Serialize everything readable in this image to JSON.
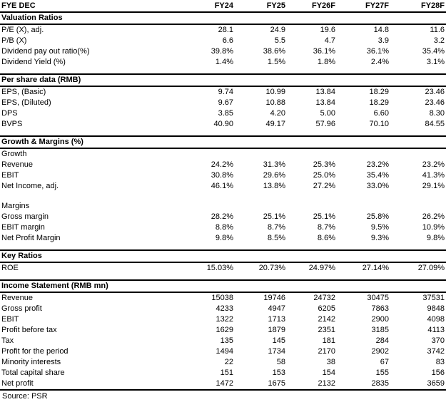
{
  "table": {
    "header": {
      "label": "FYE DEC",
      "columns": [
        "FY24",
        "FY25",
        "FY26F",
        "FY27F",
        "FY28F"
      ]
    },
    "sections": [
      {
        "title": "Valuation Ratios",
        "rows": [
          {
            "label": "P/E (X), adj.",
            "values": [
              "28.1",
              "24.9",
              "19.6",
              "14.8",
              "11.6"
            ]
          },
          {
            "label": "P/B (X)",
            "values": [
              "6.6",
              "5.5",
              "4.7",
              "3.9",
              "3.2"
            ]
          },
          {
            "label": "Dividend pay out ratio(%)",
            "values": [
              "39.8%",
              "38.6%",
              "36.1%",
              "36.1%",
              "35.4%"
            ]
          },
          {
            "label": "Dividend Yield (%)",
            "values": [
              "1.4%",
              "1.5%",
              "1.8%",
              "2.4%",
              "3.1%"
            ]
          }
        ]
      },
      {
        "title": "Per share data (RMB)",
        "rows": [
          {
            "label": "EPS, (Basic)",
            "values": [
              "9.74",
              "10.99",
              "13.84",
              "18.29",
              "23.46"
            ]
          },
          {
            "label": "EPS, (Diluted)",
            "values": [
              "9.67",
              "10.88",
              "13.84",
              "18.29",
              "23.46"
            ]
          },
          {
            "label": "DPS",
            "values": [
              "3.85",
              "4.20",
              "5.00",
              "6.60",
              "8.30"
            ]
          },
          {
            "label": "BVPS",
            "values": [
              "40.90",
              "49.17",
              "57.96",
              "70.10",
              "84.55"
            ]
          }
        ]
      },
      {
        "title": "Growth & Margins (%)",
        "rows": [
          {
            "label": "Growth",
            "subheader": true
          },
          {
            "label": "Revenue",
            "values": [
              "24.2%",
              "31.3%",
              "25.3%",
              "23.2%",
              "23.2%"
            ]
          },
          {
            "label": "EBIT",
            "values": [
              "30.8%",
              "29.6%",
              "25.0%",
              "35.4%",
              "41.3%"
            ]
          },
          {
            "label": "Net Income, adj.",
            "values": [
              "46.1%",
              "13.8%",
              "27.2%",
              "33.0%",
              "29.1%"
            ]
          },
          {
            "spacer": true
          },
          {
            "label": "Margins",
            "subheader": true
          },
          {
            "label": "Gross margin",
            "values": [
              "28.2%",
              "25.1%",
              "25.1%",
              "25.8%",
              "26.2%"
            ]
          },
          {
            "label": "EBIT margin",
            "values": [
              "8.8%",
              "8.7%",
              "8.7%",
              "9.5%",
              "10.9%"
            ]
          },
          {
            "label": "Net Profit Margin",
            "values": [
              "9.8%",
              "8.5%",
              "8.6%",
              "9.3%",
              "9.8%"
            ]
          }
        ]
      },
      {
        "title": "Key Ratios",
        "rows": [
          {
            "label": "ROE",
            "values": [
              "15.03%",
              "20.73%",
              "24.97%",
              "27.14%",
              "27.09%"
            ]
          }
        ]
      },
      {
        "title": "Income Statement (RMB mn)",
        "rows": [
          {
            "label": "Revenue",
            "values": [
              "15038",
              "19746",
              "24732",
              "30475",
              "37531"
            ],
            "bold_row": true
          },
          {
            "label": "Gross profit",
            "values": [
              "4233",
              "4947",
              "6205",
              "7863",
              "9848"
            ],
            "bold_label": true
          },
          {
            "label": "EBIT",
            "values": [
              "1322",
              "1713",
              "2142",
              "2900",
              "4098"
            ]
          },
          {
            "label": "Profit before tax",
            "values": [
              "1629",
              "1879",
              "2351",
              "3185",
              "4113"
            ]
          },
          {
            "label": "Tax",
            "values": [
              "135",
              "145",
              "181",
              "284",
              "370"
            ],
            "bold_label": true
          },
          {
            "label": "Profit for the period",
            "values": [
              "1494",
              "1734",
              "2170",
              "2902",
              "3742"
            ]
          },
          {
            "label": "Minority interests",
            "values": [
              "22",
              "58",
              "38",
              "67",
              "83"
            ]
          },
          {
            "label": "Total capital share",
            "values": [
              "151",
              "153",
              "154",
              "155",
              "156"
            ]
          },
          {
            "label": "Net profit",
            "values": [
              "1472",
              "1675",
              "2132",
              "2835",
              "3659"
            ],
            "bold_row": true
          }
        ]
      }
    ],
    "source": "Source: PSR"
  }
}
